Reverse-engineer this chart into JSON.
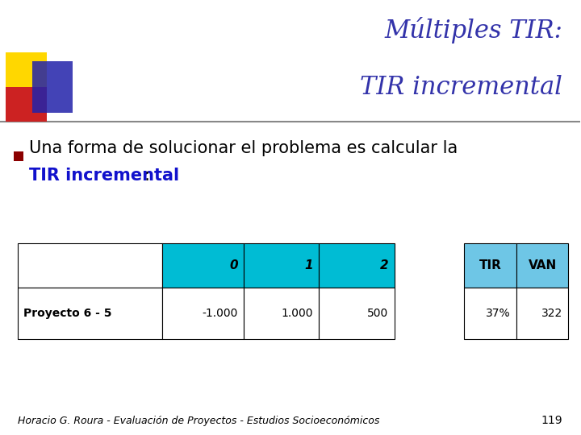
{
  "title_line1": "Múltiples TIR:",
  "title_line2": "TIR incremental",
  "title_color": "#3333aa",
  "title_fontsize": 22,
  "bullet_text_normal": "Una forma de solucionar el problema es calcular la",
  "bullet_text_bold_blue": "TIR incremental",
  "bullet_text_colon": ":",
  "bullet_fontsize": 15,
  "bullet_color_normal": "#000000",
  "bullet_color_blue": "#1111cc",
  "bullet_marker_color": "#8B0000",
  "bg_color": "#ffffff",
  "header_bg": "#00bcd4",
  "tir_van_bg": "#6ec6e6",
  "col_headers": [
    "0",
    "1",
    "2",
    "TIR",
    "VAN"
  ],
  "row_labels": [
    "Proyecto 6 - 5"
  ],
  "row_data": [
    [
      "-1.000",
      "1.000",
      "500",
      "37%",
      "322"
    ]
  ],
  "footer_text": "Horacio G. Roura - Evaluación de Proyectos - Estudios Socioeconómicos",
  "footer_page": "119",
  "footer_fontsize": 9,
  "footer_color": "#000000",
  "decor_yellow": "#FFD700",
  "decor_red": "#cc2222",
  "decor_blue": "#2222aa",
  "separator_line_color": "#888888"
}
